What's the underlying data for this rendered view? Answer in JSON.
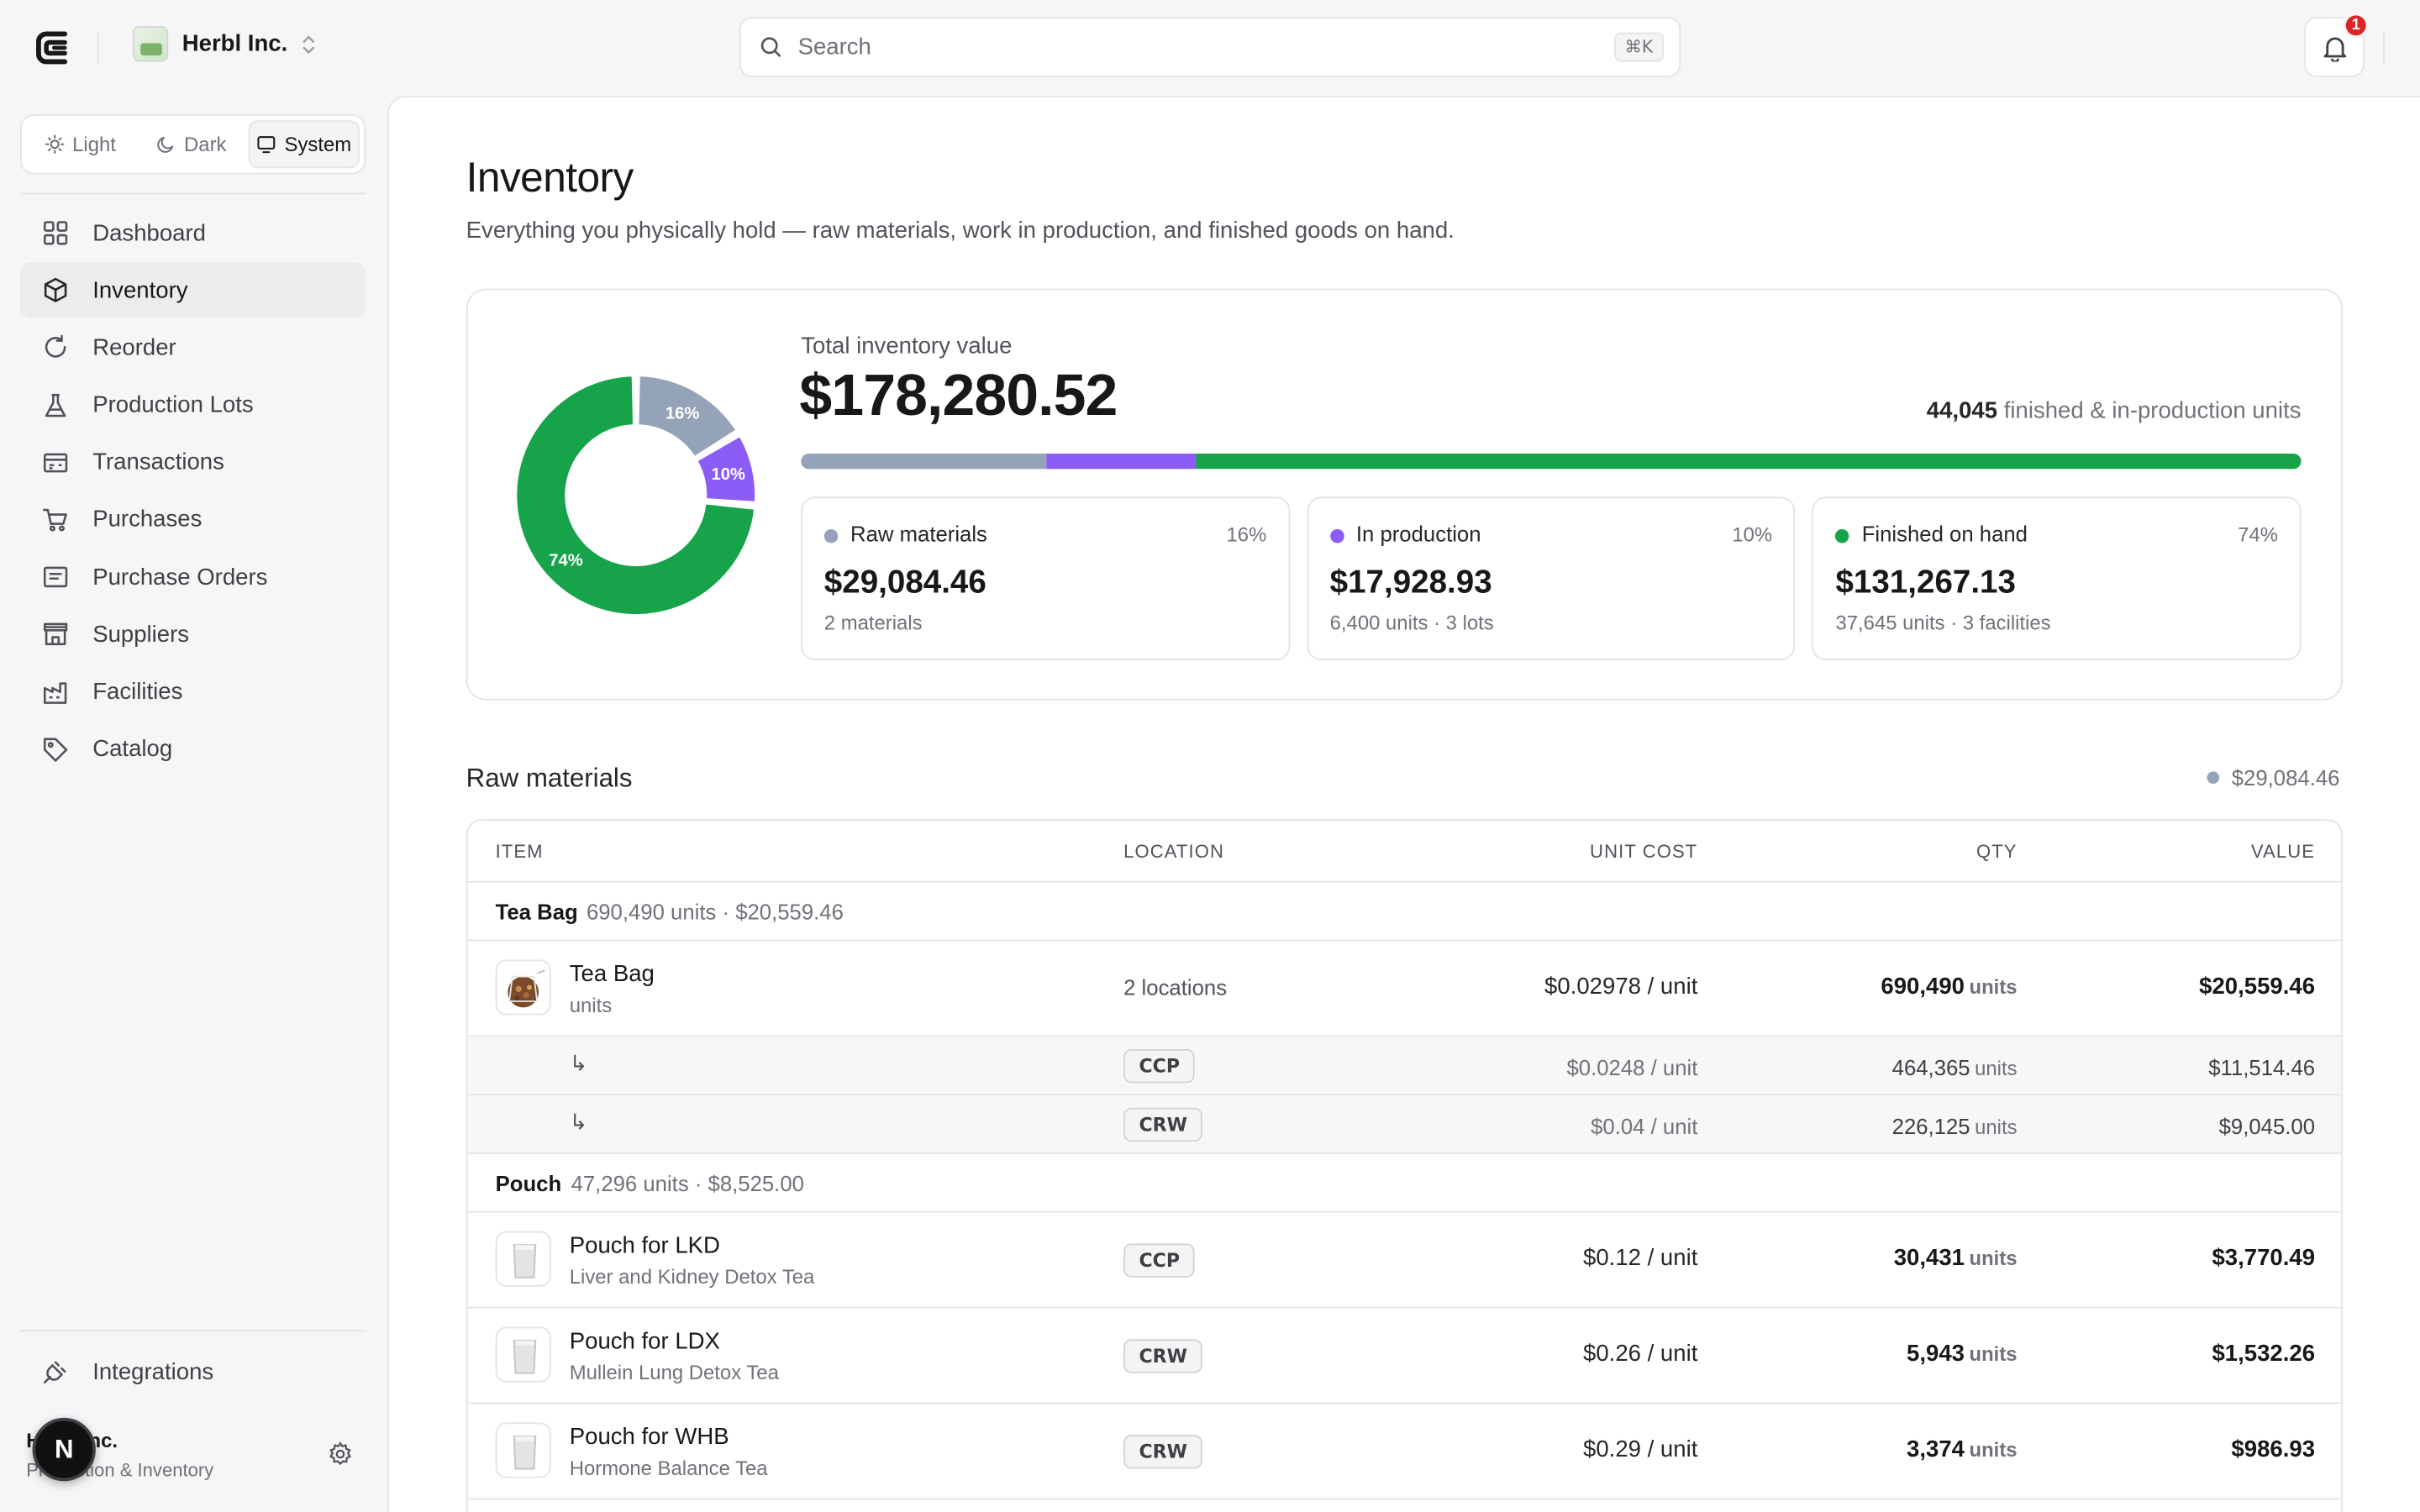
{
  "org": {
    "name": "Herbl Inc."
  },
  "search": {
    "placeholder": "Search",
    "shortcut": "⌘K"
  },
  "notifications": {
    "count": "1"
  },
  "theme": {
    "options": [
      "Light",
      "Dark",
      "System"
    ],
    "selected": "System"
  },
  "nav": {
    "items": [
      "Dashboard",
      "Inventory",
      "Reorder",
      "Production Lots",
      "Transactions",
      "Purchases",
      "Purchase Orders",
      "Suppliers",
      "Facilities",
      "Catalog"
    ],
    "active": "Inventory",
    "integrations": "Integrations"
  },
  "user": {
    "name": "Herbl Inc.",
    "subtitle": "Production & Inventory",
    "avatar_letter": "N"
  },
  "page": {
    "title": "Inventory",
    "subtitle": "Everything you physically hold — raw materials, work in production, and finished goods on hand."
  },
  "summary": {
    "total_label": "Total inventory value",
    "total_value": "$178,280.52",
    "units_count": "44,045",
    "units_label": "finished & in-production units",
    "colors": {
      "raw": "#94a3b8",
      "production": "#8b5cf6",
      "finished": "#16a34a"
    },
    "cards": [
      {
        "label": "Raw materials",
        "pct": "16%",
        "value": "$29,084.46",
        "sub": "2 materials"
      },
      {
        "label": "In production",
        "pct": "10%",
        "value": "$17,928.93",
        "sub": "6,400 units · 3 lots"
      },
      {
        "label": "Finished on hand",
        "pct": "74%",
        "value": "$131,267.13",
        "sub": "37,645 units · 3 facilities"
      }
    ]
  },
  "chart_data": {
    "type": "pie",
    "categories": [
      "Raw materials",
      "In production",
      "Finished on hand"
    ],
    "values": [
      29084.46,
      17928.93,
      131267.13
    ],
    "labels": [
      "16%",
      "10%",
      "74%"
    ]
  },
  "raw": {
    "title": "Raw materials",
    "total": "$29,084.46",
    "headers": [
      "ITEM",
      "LOCATION",
      "UNIT COST",
      "QTY",
      "VALUE"
    ],
    "groups": [
      {
        "name": "Tea Bag",
        "summary": "690,490 units · $20,559.46"
      },
      {
        "name": "Pouch",
        "summary": "47,296 units · $8,525.00"
      }
    ],
    "teabag": {
      "name": "Tea Bag",
      "desc": "units",
      "location": "2 locations",
      "cost": "$0.02978 / unit",
      "qty": "690,490",
      "qty_unit": "units",
      "value": "$20,559.46",
      "subs": [
        {
          "arrow": "↳",
          "loc": "CCP",
          "cost": "$0.0248 / unit",
          "qty": "464,365",
          "qty_unit": "units",
          "value": "$11,514.46"
        },
        {
          "arrow": "↳",
          "loc": "CRW",
          "cost": "$0.04 / unit",
          "qty": "226,125",
          "qty_unit": "units",
          "value": "$9,045.00"
        }
      ]
    },
    "pouches": [
      {
        "name": "Pouch for LKD",
        "desc": "Liver and Kidney Detox Tea",
        "loc": "CCP",
        "cost": "$0.12 / unit",
        "qty": "30,431",
        "qty_unit": "units",
        "value": "$3,770.49"
      },
      {
        "name": "Pouch for LDX",
        "desc": "Mullein Lung Detox Tea",
        "loc": "CRW",
        "cost": "$0.26 / unit",
        "qty": "5,943",
        "qty_unit": "units",
        "value": "$1,532.26"
      },
      {
        "name": "Pouch for WHB",
        "desc": "Hormone Balance Tea",
        "loc": "CRW",
        "cost": "$0.29 / unit",
        "qty": "3,374",
        "qty_unit": "units",
        "value": "$986.93"
      }
    ]
  }
}
